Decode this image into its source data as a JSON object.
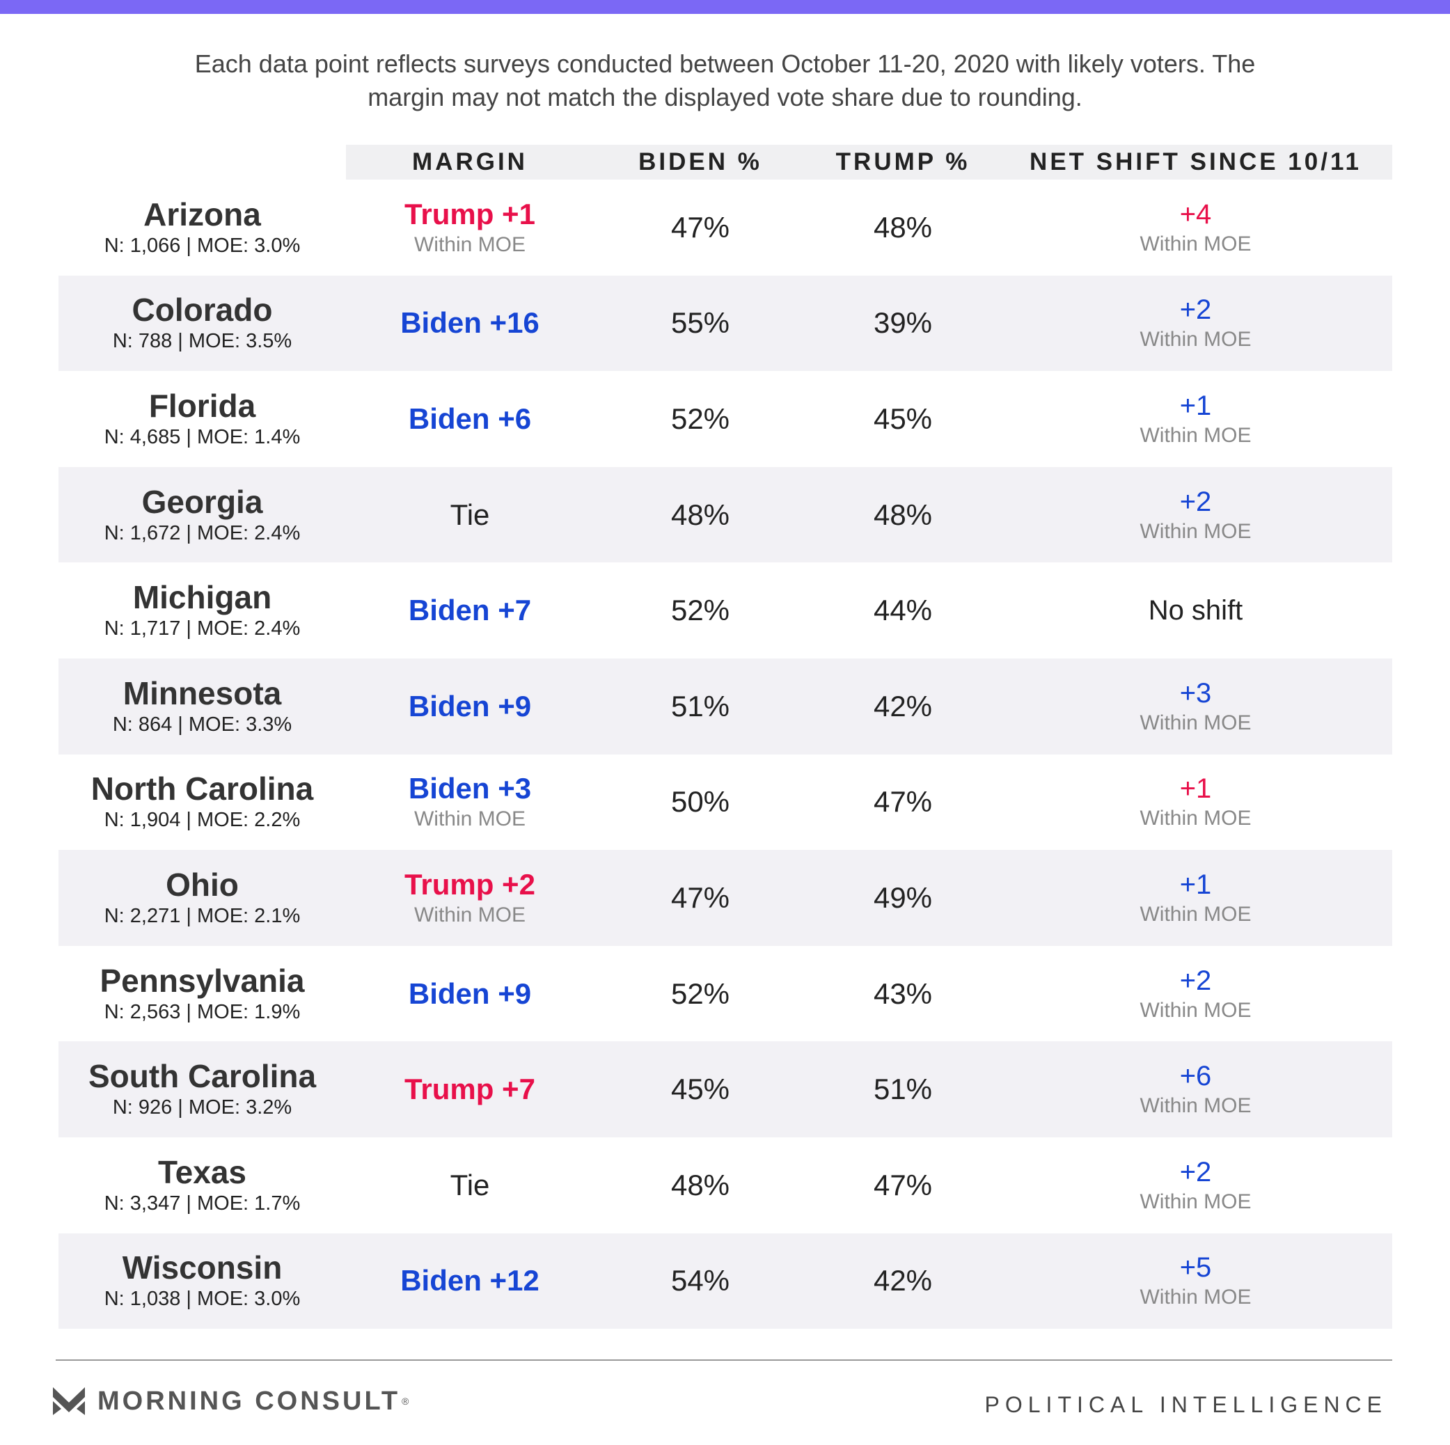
{
  "subtitle_line1": "Each data point reflects surveys conducted between October 11-20, 2020 with likely voters. The",
  "subtitle_line2": "margin may not match the displayed vote share due to rounding.",
  "colors": {
    "accent_bar": "#7b68f5",
    "trump": "#e8104a",
    "biden": "#1645d4",
    "shaded_row": "#f2f1f5",
    "muted": "#888888"
  },
  "chart_data": {
    "type": "table",
    "columns": [
      "MARGIN",
      "BIDEN %",
      "TRUMP %",
      "NET SHIFT SINCE 10/11"
    ],
    "rows": [
      {
        "state": "Arizona",
        "meta": "N: 1,066 | MOE: 3.0%",
        "margin": "Trump +1",
        "margin_party": "trump",
        "margin_note": "Within MOE",
        "biden": "47%",
        "trump": "48%",
        "shift": "+4",
        "shift_party": "trump",
        "shift_note": "Within MOE"
      },
      {
        "state": "Colorado",
        "meta": "N: 788 | MOE: 3.5%",
        "margin": "Biden +16",
        "margin_party": "biden",
        "margin_note": "",
        "biden": "55%",
        "trump": "39%",
        "shift": "+2",
        "shift_party": "biden",
        "shift_note": "Within MOE"
      },
      {
        "state": "Florida",
        "meta": "N: 4,685 | MOE: 1.4%",
        "margin": "Biden +6",
        "margin_party": "biden",
        "margin_note": "",
        "biden": "52%",
        "trump": "45%",
        "shift": "+1",
        "shift_party": "biden",
        "shift_note": "Within MOE"
      },
      {
        "state": "Georgia",
        "meta": "N: 1,672 | MOE: 2.4%",
        "margin": "Tie",
        "margin_party": "tie",
        "margin_note": "",
        "biden": "48%",
        "trump": "48%",
        "shift": "+2",
        "shift_party": "biden",
        "shift_note": "Within MOE"
      },
      {
        "state": "Michigan",
        "meta": "N: 1,717 | MOE: 2.4%",
        "margin": "Biden +7",
        "margin_party": "biden",
        "margin_note": "",
        "biden": "52%",
        "trump": "44%",
        "shift": "No shift",
        "shift_party": "none",
        "shift_note": ""
      },
      {
        "state": "Minnesota",
        "meta": "N: 864 | MOE: 3.3%",
        "margin": "Biden +9",
        "margin_party": "biden",
        "margin_note": "",
        "biden": "51%",
        "trump": "42%",
        "shift": "+3",
        "shift_party": "biden",
        "shift_note": "Within MOE"
      },
      {
        "state": "North Carolina",
        "meta": "N: 1,904 | MOE: 2.2%",
        "margin": "Biden +3",
        "margin_party": "biden",
        "margin_note": "Within MOE",
        "biden": "50%",
        "trump": "47%",
        "shift": "+1",
        "shift_party": "trump",
        "shift_note": "Within MOE"
      },
      {
        "state": "Ohio",
        "meta": "N: 2,271 | MOE: 2.1%",
        "margin": "Trump +2",
        "margin_party": "trump",
        "margin_note": "Within MOE",
        "biden": "47%",
        "trump": "49%",
        "shift": "+1",
        "shift_party": "biden",
        "shift_note": "Within MOE"
      },
      {
        "state": "Pennsylvania",
        "meta": "N: 2,563 | MOE: 1.9%",
        "margin": "Biden +9",
        "margin_party": "biden",
        "margin_note": "",
        "biden": "52%",
        "trump": "43%",
        "shift": "+2",
        "shift_party": "biden",
        "shift_note": "Within MOE"
      },
      {
        "state": "South Carolina",
        "meta": "N: 926 | MOE: 3.2%",
        "margin": "Trump +7",
        "margin_party": "trump",
        "margin_note": "",
        "biden": "45%",
        "trump": "51%",
        "shift": "+6",
        "shift_party": "biden",
        "shift_note": "Within MOE"
      },
      {
        "state": "Texas",
        "meta": "N: 3,347 | MOE: 1.7%",
        "margin": "Tie",
        "margin_party": "tie",
        "margin_note": "",
        "biden": "48%",
        "trump": "47%",
        "shift": "+2",
        "shift_party": "biden",
        "shift_note": "Within MOE"
      },
      {
        "state": "Wisconsin",
        "meta": "N: 1,038 | MOE: 3.0%",
        "margin": "Biden +12",
        "margin_party": "biden",
        "margin_note": "",
        "biden": "54%",
        "trump": "42%",
        "shift": "+5",
        "shift_party": "biden",
        "shift_note": "Within MOE"
      }
    ]
  },
  "footer": {
    "logo_icon": "morning-consult-m-icon",
    "logo_text": "MORNING CONSULT",
    "logo_reg": "®",
    "tagline": "POLITICAL INTELLIGENCE"
  }
}
